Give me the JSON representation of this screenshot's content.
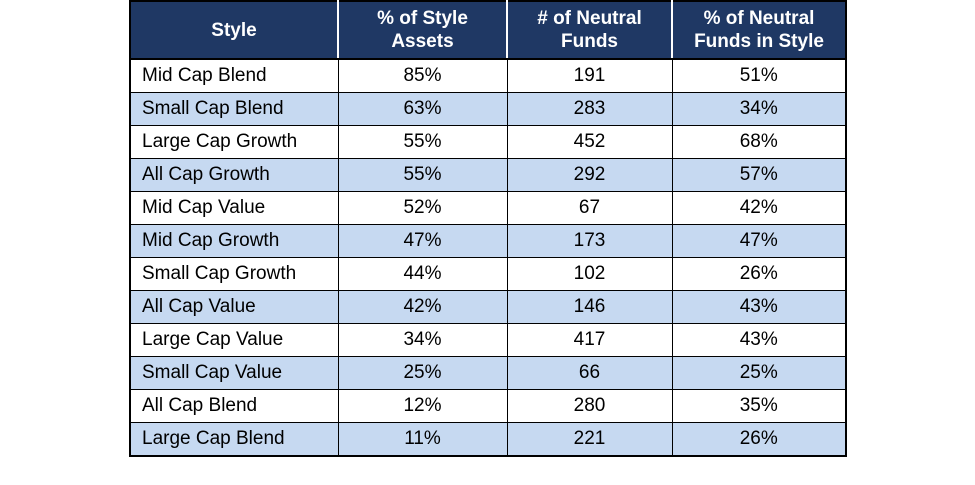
{
  "chart_data": {
    "type": "table",
    "columns": [
      "Style",
      "% of Style Assets",
      "# of Neutral Funds",
      "% of Neutral Funds in Style"
    ],
    "header_lines": [
      [
        "Style"
      ],
      [
        "% of Style",
        "Assets"
      ],
      [
        "# of Neutral",
        "Funds"
      ],
      [
        "% of Neutral",
        "Funds in Style"
      ]
    ],
    "rows": [
      [
        "Mid Cap Blend",
        "85%",
        "191",
        "51%"
      ],
      [
        "Small Cap Blend",
        "63%",
        "283",
        "34%"
      ],
      [
        "Large Cap Growth",
        "55%",
        "452",
        "68%"
      ],
      [
        "All Cap Growth",
        "55%",
        "292",
        "57%"
      ],
      [
        "Mid Cap Value",
        "52%",
        "67",
        "42%"
      ],
      [
        "Mid Cap Growth",
        "47%",
        "173",
        "47%"
      ],
      [
        "Small Cap Growth",
        "44%",
        "102",
        "26%"
      ],
      [
        "All Cap Value",
        "42%",
        "146",
        "43%"
      ],
      [
        "Large Cap Value",
        "34%",
        "417",
        "43%"
      ],
      [
        "Small Cap Value",
        "25%",
        "66",
        "25%"
      ],
      [
        "All Cap Blend",
        "12%",
        "280",
        "35%"
      ],
      [
        "Large Cap Blend",
        "11%",
        "221",
        "26%"
      ]
    ],
    "colors": {
      "header_bg": "#1f3864",
      "header_text": "#ffffff",
      "stripe": "#c6d9f1",
      "row": "#ffffff"
    }
  }
}
